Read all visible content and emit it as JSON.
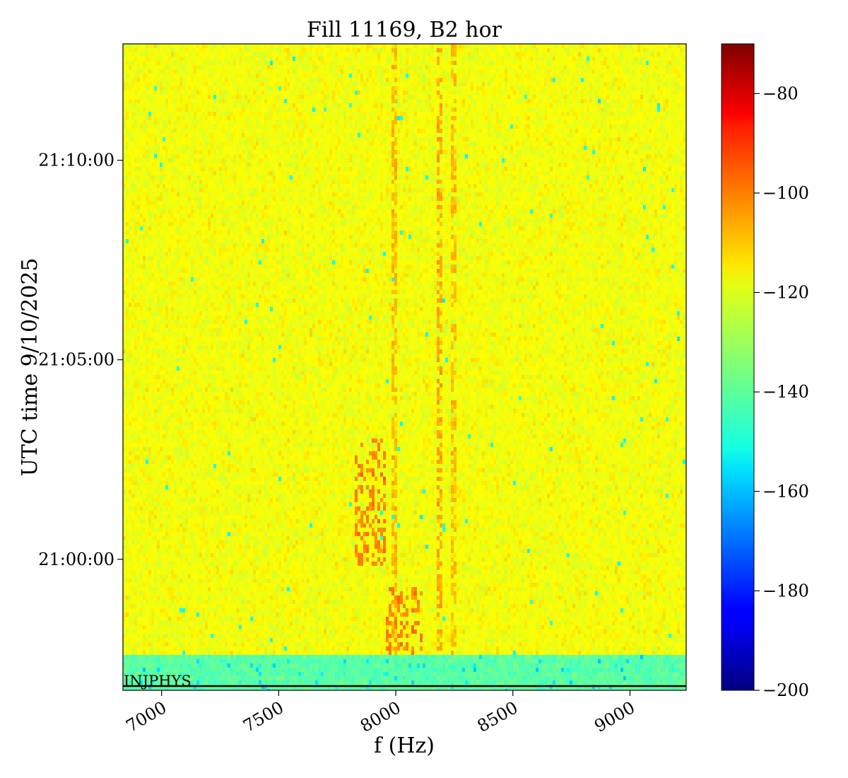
{
  "chart_data": {
    "type": "heatmap",
    "title": "Fill 11169, B2 hor",
    "xlabel": "f (Hz)",
    "ylabel": "UTC time 9/10/2025",
    "xlim": [
      6835,
      9240
    ],
    "x_ticks": [
      {
        "value": 7000,
        "label": "7000"
      },
      {
        "value": 7500,
        "label": "7500"
      },
      {
        "value": 8000,
        "label": "8000"
      },
      {
        "value": 8500,
        "label": "8500"
      },
      {
        "value": 9000,
        "label": "9000"
      }
    ],
    "y_ticks": [
      {
        "label": "21:10:00",
        "minutes_after_2055": 15
      },
      {
        "label": "21:05:00",
        "minutes_after_2055": 10
      },
      {
        "label": "21:00:00",
        "minutes_after_2055": 5
      }
    ],
    "time_range": [
      "20:56:43",
      "21:12:55"
    ],
    "colorbar": {
      "colormap": "jet",
      "range": [
        -200,
        -70
      ],
      "ticks": [
        {
          "value": -80,
          "label": "−80"
        },
        {
          "value": -100,
          "label": "−100"
        },
        {
          "value": -120,
          "label": "−120"
        },
        {
          "value": -140,
          "label": "−140"
        },
        {
          "value": -160,
          "label": "−160"
        },
        {
          "value": -180,
          "label": "−180"
        },
        {
          "value": -200,
          "label": "−200"
        }
      ]
    },
    "background_level": -120,
    "lower_band": {
      "level": -140,
      "time_end": "20:57:36"
    },
    "features": [
      {
        "name": "line near 7990 Hz",
        "freq": 7990,
        "level": -110
      },
      {
        "name": "line near 8185 Hz",
        "freq": 8185,
        "level": -108
      },
      {
        "name": "line near 8245 Hz",
        "freq": 8245,
        "level": -110
      },
      {
        "name": "burst 20:57:35-20:59:20",
        "freq_range": [
          7955,
          8110
        ],
        "level": -103
      },
      {
        "name": "burst 20:59:50-21:03:00",
        "freq_range": [
          7820,
          7960
        ],
        "level": -103
      }
    ],
    "annotation": {
      "text": "INJPHYS",
      "time": "20:56:50"
    }
  }
}
